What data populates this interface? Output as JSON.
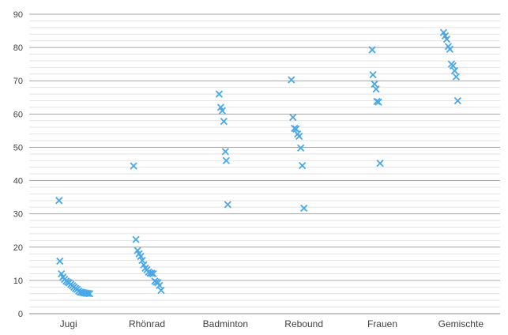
{
  "chart_data": {
    "type": "scatter",
    "title": "",
    "xlabel": "",
    "ylabel": "",
    "ylim": [
      0,
      90
    ],
    "yticks": [
      0,
      10,
      20,
      30,
      40,
      50,
      60,
      70,
      80,
      90
    ],
    "grid": "major gridlines every 10, minor gridlines every 2",
    "legend": "none",
    "marker": "x",
    "colors": {
      "marker": "#4aa8e8",
      "grid_major": "#a6a6a6",
      "grid_minor": "#e3e3e3",
      "text": "#404040"
    },
    "categories": [
      "Jugi",
      "Rhönrad",
      "Badminton",
      "Rebound",
      "Frauen",
      "Gemischte"
    ],
    "series": [
      {
        "category": "Jugi",
        "points": [
          {
            "x": -0.12,
            "y": 34
          },
          {
            "x": -0.11,
            "y": 15.8
          },
          {
            "x": -0.09,
            "y": 12
          },
          {
            "x": -0.07,
            "y": 11
          },
          {
            "x": -0.05,
            "y": 10.3
          },
          {
            "x": -0.03,
            "y": 9.8
          },
          {
            "x": -0.01,
            "y": 9.5
          },
          {
            "x": 0.01,
            "y": 9.3
          },
          {
            "x": 0.03,
            "y": 8.8
          },
          {
            "x": 0.05,
            "y": 8.4
          },
          {
            "x": 0.07,
            "y": 8
          },
          {
            "x": 0.09,
            "y": 7.6
          },
          {
            "x": 0.11,
            "y": 7.3
          },
          {
            "x": 0.13,
            "y": 6.8
          },
          {
            "x": 0.15,
            "y": 6.5
          },
          {
            "x": 0.17,
            "y": 6.4
          },
          {
            "x": 0.19,
            "y": 6.3
          },
          {
            "x": 0.21,
            "y": 6.2
          },
          {
            "x": 0.23,
            "y": 6.1
          },
          {
            "x": 0.25,
            "y": 6.1
          },
          {
            "x": 0.27,
            "y": 6
          }
        ]
      },
      {
        "category": "Rhönrad",
        "points": [
          {
            "x": -0.17,
            "y": 44.4
          },
          {
            "x": -0.14,
            "y": 22.3
          },
          {
            "x": -0.12,
            "y": 19
          },
          {
            "x": -0.1,
            "y": 18
          },
          {
            "x": -0.08,
            "y": 17.2
          },
          {
            "x": -0.06,
            "y": 16
          },
          {
            "x": -0.04,
            "y": 14.7
          },
          {
            "x": -0.02,
            "y": 13.7
          },
          {
            "x": 0,
            "y": 13.2
          },
          {
            "x": 0.02,
            "y": 12.5
          },
          {
            "x": 0.04,
            "y": 12.2
          },
          {
            "x": 0.06,
            "y": 12.1
          },
          {
            "x": 0.08,
            "y": 12
          },
          {
            "x": 0.1,
            "y": 9.8
          },
          {
            "x": 0.12,
            "y": 9.5
          },
          {
            "x": 0.14,
            "y": 9.3
          },
          {
            "x": 0.16,
            "y": 8.5
          },
          {
            "x": 0.18,
            "y": 7
          }
        ]
      },
      {
        "category": "Badminton",
        "points": [
          {
            "x": -0.08,
            "y": 66
          },
          {
            "x": -0.06,
            "y": 62
          },
          {
            "x": -0.04,
            "y": 61
          },
          {
            "x": -0.02,
            "y": 57.8
          },
          {
            "x": 0,
            "y": 48.7
          },
          {
            "x": 0.01,
            "y": 46
          },
          {
            "x": 0.03,
            "y": 32.8
          }
        ]
      },
      {
        "category": "Rebound",
        "points": [
          {
            "x": -0.16,
            "y": 70.3
          },
          {
            "x": -0.14,
            "y": 59
          },
          {
            "x": -0.12,
            "y": 55.7
          },
          {
            "x": -0.1,
            "y": 55.5
          },
          {
            "x": -0.08,
            "y": 54
          },
          {
            "x": -0.06,
            "y": 53.3
          },
          {
            "x": -0.04,
            "y": 49.8
          },
          {
            "x": -0.02,
            "y": 44.5
          },
          {
            "x": 0,
            "y": 31.7
          }
        ]
      },
      {
        "category": "Frauen",
        "points": [
          {
            "x": -0.13,
            "y": 79.3
          },
          {
            "x": -0.12,
            "y": 71.8
          },
          {
            "x": -0.1,
            "y": 69
          },
          {
            "x": -0.08,
            "y": 67.5
          },
          {
            "x": -0.07,
            "y": 63.8
          },
          {
            "x": -0.05,
            "y": 63.6
          },
          {
            "x": -0.03,
            "y": 45.2
          }
        ]
      },
      {
        "category": "Gemischte",
        "points": [
          {
            "x": -0.22,
            "y": 84.5
          },
          {
            "x": -0.2,
            "y": 83.5
          },
          {
            "x": -0.18,
            "y": 82.5
          },
          {
            "x": -0.16,
            "y": 80.3
          },
          {
            "x": -0.14,
            "y": 79.5
          },
          {
            "x": -0.12,
            "y": 75
          },
          {
            "x": -0.1,
            "y": 74.5
          },
          {
            "x": -0.08,
            "y": 73
          },
          {
            "x": -0.06,
            "y": 71.2
          },
          {
            "x": -0.04,
            "y": 64
          }
        ]
      }
    ]
  }
}
